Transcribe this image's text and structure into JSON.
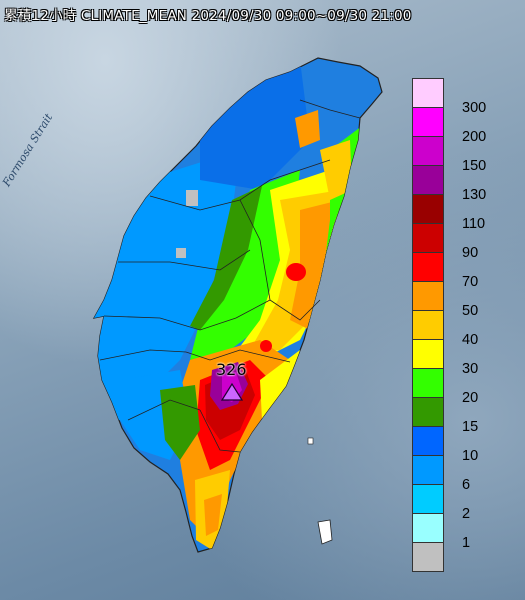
{
  "header": {
    "title": "累積12小時 CLIMATE_MEAN 2024/09/30 09:00~09/30 21:00"
  },
  "map": {
    "strait_label": "Formosa Strait",
    "peak_value": "326",
    "peak_marker_icon": "triangle-icon"
  },
  "legend": {
    "items": [
      {
        "label": "300",
        "color": "#ffccff"
      },
      {
        "label": "200",
        "color": "#ff00ff"
      },
      {
        "label": "150",
        "color": "#cc00cc"
      },
      {
        "label": "130",
        "color": "#990099"
      },
      {
        "label": "110",
        "color": "#990000"
      },
      {
        "label": "90",
        "color": "#cc0000"
      },
      {
        "label": "70",
        "color": "#ff0000"
      },
      {
        "label": "50",
        "color": "#ff9900"
      },
      {
        "label": "40",
        "color": "#ffcc00"
      },
      {
        "label": "30",
        "color": "#ffff00"
      },
      {
        "label": "20",
        "color": "#33ff00"
      },
      {
        "label": "15",
        "color": "#339900"
      },
      {
        "label": "10",
        "color": "#0066ff"
      },
      {
        "label": "6",
        "color": "#0099ff"
      },
      {
        "label": "2",
        "color": "#00ccff"
      },
      {
        "label": "1",
        "color": "#99ffff"
      },
      {
        "label": "",
        "color": "#c0c0c0"
      }
    ]
  }
}
